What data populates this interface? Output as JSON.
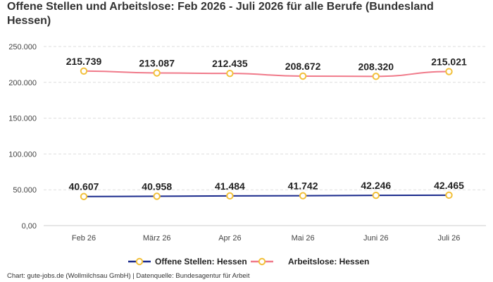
{
  "title": "Offene Stellen und Arbeitslose: Feb 2026 - Juli 2026 für alle Berufe (Bundesland Hessen)",
  "footer": "Chart: gute-jobs.de (Wollmilchsau GmbH) | Datenquelle: Bundesagentur für Arbeit",
  "chart_data": {
    "type": "line",
    "categories": [
      "Feb 26",
      "März 26",
      "Apr 26",
      "Mai 26",
      "Juni 26",
      "Juli 26"
    ],
    "series": [
      {
        "name": "Offene Stellen: Hessen",
        "values": [
          40607,
          40958,
          41484,
          41742,
          42246,
          42465
        ],
        "labels": [
          "40.607",
          "40.958",
          "41.484",
          "41.742",
          "42.246",
          "42.465"
        ],
        "color": "#1a2a8c"
      },
      {
        "name": "Arbeitslose: Hessen",
        "values": [
          215739,
          213087,
          212435,
          208672,
          208320,
          215021
        ],
        "labels": [
          "215.739",
          "213.087",
          "212.435",
          "208.672",
          "208.320",
          "215.021"
        ],
        "color": "#f07a8a"
      }
    ],
    "marker": {
      "fill": "#ffffff",
      "stroke": "#f2c03a"
    },
    "ylim": [
      0,
      250000
    ],
    "yticks": [
      0,
      50000,
      100000,
      150000,
      200000,
      250000
    ],
    "ytick_labels": [
      "0,00",
      "50.000",
      "100.000",
      "150.000",
      "200.000",
      "250.000"
    ],
    "grid": true,
    "legend": "bottom-center"
  }
}
